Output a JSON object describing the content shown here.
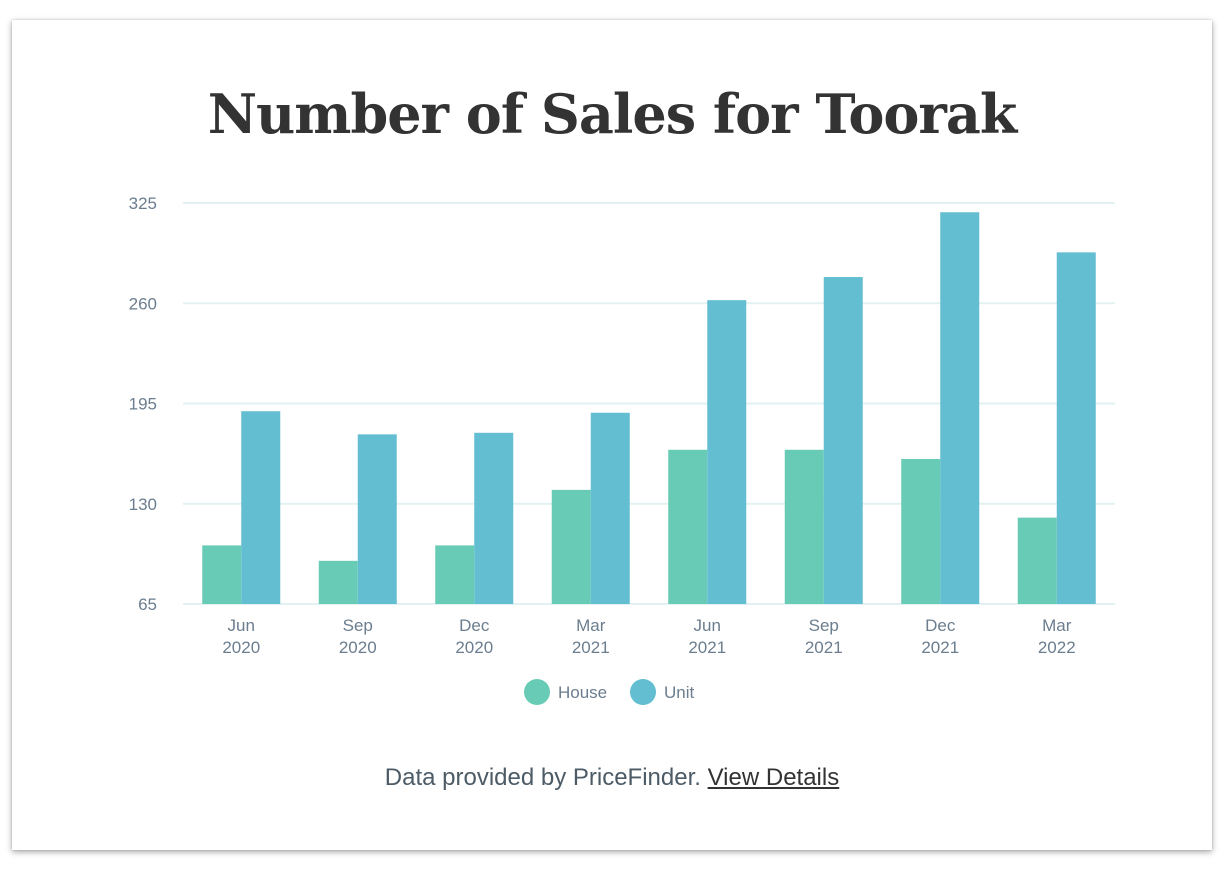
{
  "page": {
    "title": "Number of Sales for Toorak",
    "footer_text": "Data provided by PriceFinder.",
    "footer_link": "View Details"
  },
  "colors": {
    "house": "#68cbb6",
    "unit": "#63bed2",
    "grid": "#e2f1f2",
    "tick": "#6b7d8e"
  },
  "chart_data": {
    "type": "bar",
    "title": "Number of Sales for Toorak",
    "categories": [
      [
        "Jun",
        "2020"
      ],
      [
        "Sep",
        "2020"
      ],
      [
        "Dec",
        "2020"
      ],
      [
        "Mar",
        "2021"
      ],
      [
        "Jun",
        "2021"
      ],
      [
        "Sep",
        "2021"
      ],
      [
        "Dec",
        "2021"
      ],
      [
        "Mar",
        "2022"
      ]
    ],
    "series": [
      {
        "name": "House",
        "values": [
          103,
          93,
          103,
          139,
          165,
          165,
          159,
          121
        ]
      },
      {
        "name": "Unit",
        "values": [
          190,
          175,
          176,
          189,
          262,
          277,
          319,
          293
        ]
      }
    ],
    "yticks": [
      65,
      130,
      195,
      260,
      325
    ],
    "ylim": [
      65,
      325
    ],
    "xlabel": "",
    "ylabel": "",
    "grid": true,
    "legend": "bottom-center"
  }
}
